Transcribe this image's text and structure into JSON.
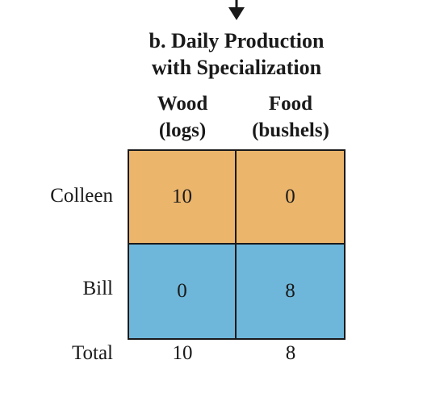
{
  "title_line1": "b. Daily Production",
  "title_line2": "with Specialization",
  "columns": [
    {
      "line1": "Wood",
      "line2": "(logs)"
    },
    {
      "line1": "Food",
      "line2": "(bushels)"
    }
  ],
  "rows": [
    {
      "label": "Colleen",
      "values": [
        "10",
        "0"
      ],
      "color": "#ebb56b"
    },
    {
      "label": "Bill",
      "values": [
        "0",
        "8"
      ],
      "color": "#6fb7da"
    }
  ],
  "total": {
    "label": "Total",
    "values": [
      "10",
      "8"
    ]
  },
  "icons": {
    "top_arrow": "down-arrow-icon"
  }
}
